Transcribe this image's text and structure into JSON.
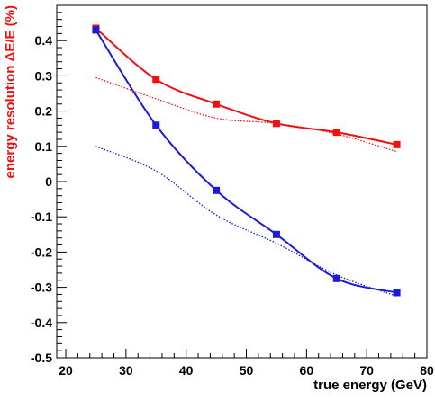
{
  "chart_data": {
    "type": "line",
    "xlabel": "true energy (GeV)",
    "ylabel": "energy resolution ΔE/E (%)",
    "xlim": [
      18.5,
      80
    ],
    "ylim": [
      -0.5,
      0.5
    ],
    "x_ticks": [
      20,
      30,
      40,
      50,
      60,
      70,
      80
    ],
    "y_ticks": [
      -0.5,
      -0.4,
      -0.3,
      -0.2,
      -0.1,
      0,
      0.1,
      0.2,
      0.3,
      0.4
    ],
    "y_tick_labels": [
      "-0.5",
      "-0.4",
      "-0.3",
      "-0.2",
      "-0.1",
      "0",
      "0.1",
      "0.2",
      "0.3",
      "0.4"
    ],
    "grid": false,
    "colors": {
      "red": "#ee1111",
      "blue": "#1a1ad8",
      "ylabel": "#ee1111"
    },
    "series": [
      {
        "style": "solid",
        "color": "red",
        "markers": true,
        "x": [
          25,
          35,
          45,
          55,
          65,
          75
        ],
        "y": [
          0.435,
          0.29,
          0.22,
          0.165,
          0.14,
          0.105
        ]
      },
      {
        "style": "solid",
        "color": "blue",
        "markers": true,
        "x": [
          25,
          35,
          45,
          55,
          65,
          75
        ],
        "y": [
          0.43,
          0.16,
          -0.025,
          -0.15,
          -0.275,
          -0.315
        ]
      },
      {
        "style": "dotted",
        "color": "red",
        "markers": false,
        "x": [
          25,
          35,
          45,
          55,
          65,
          75
        ],
        "y": [
          0.295,
          0.235,
          0.18,
          0.165,
          0.135,
          0.085
        ]
      },
      {
        "style": "dotted",
        "color": "blue",
        "markers": false,
        "x": [
          25,
          35,
          45,
          55,
          65,
          75
        ],
        "y": [
          0.1,
          0.03,
          -0.095,
          -0.175,
          -0.265,
          -0.325
        ]
      }
    ]
  }
}
